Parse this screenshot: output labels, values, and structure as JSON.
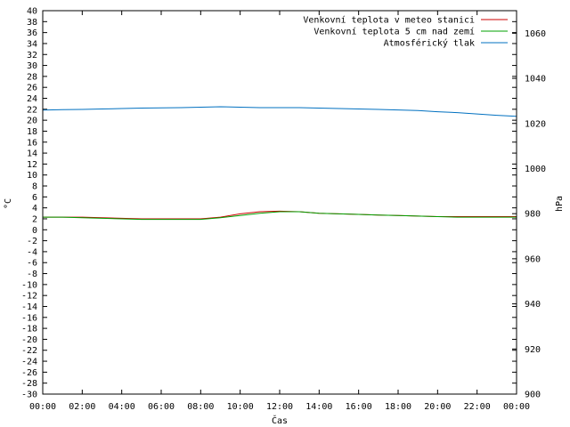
{
  "chart_data": {
    "type": "line",
    "xlabel": "Čas",
    "ylabel_left": "°C",
    "ylabel_right": "hPa",
    "x_ticks": [
      "00:00",
      "02:00",
      "04:00",
      "06:00",
      "08:00",
      "10:00",
      "12:00",
      "14:00",
      "16:00",
      "18:00",
      "20:00",
      "22:00",
      "00:00"
    ],
    "y_left_range": [
      -30,
      40
    ],
    "y_left_step": 2,
    "y_right_range": [
      900,
      1070
    ],
    "y_right_ticks": [
      900,
      920,
      940,
      960,
      980,
      1000,
      1020,
      1040,
      1060
    ],
    "grid": false,
    "legend_position": "top-right",
    "x_hours": [
      0,
      1,
      2,
      3,
      4,
      5,
      6,
      7,
      8,
      9,
      10,
      11,
      12,
      13,
      14,
      15,
      16,
      17,
      18,
      19,
      20,
      21,
      22,
      23,
      24
    ],
    "series": [
      {
        "name": "Venkovní teplota v meteo stanici",
        "color": "#cc0000",
        "axis": "left",
        "values": [
          2.3,
          2.3,
          2.3,
          2.2,
          2.1,
          2.0,
          2.0,
          2.0,
          2.0,
          2.3,
          2.9,
          3.3,
          3.4,
          3.3,
          3.0,
          2.9,
          2.8,
          2.7,
          2.6,
          2.5,
          2.4,
          2.4,
          2.4,
          2.4,
          2.4
        ]
      },
      {
        "name": "Venkovní teplota 5 cm nad zemí",
        "color": "#00a000",
        "axis": "left",
        "values": [
          2.3,
          2.3,
          2.2,
          2.1,
          2.0,
          1.9,
          1.9,
          1.9,
          1.9,
          2.2,
          2.6,
          3.0,
          3.3,
          3.3,
          3.0,
          2.9,
          2.8,
          2.7,
          2.6,
          2.5,
          2.4,
          2.3,
          2.3,
          2.3,
          2.3
        ]
      },
      {
        "name": "Atmosférický tlak",
        "color": "#0070c0",
        "axis": "right",
        "values": [
          1025.9,
          1026.1,
          1026.2,
          1026.4,
          1026.6,
          1026.8,
          1026.9,
          1027.0,
          1027.2,
          1027.4,
          1027.2,
          1027.0,
          1027.0,
          1027.0,
          1026.8,
          1026.6,
          1026.4,
          1026.2,
          1026.0,
          1025.7,
          1025.2,
          1024.8,
          1024.2,
          1023.6,
          1023.2
        ]
      }
    ]
  }
}
